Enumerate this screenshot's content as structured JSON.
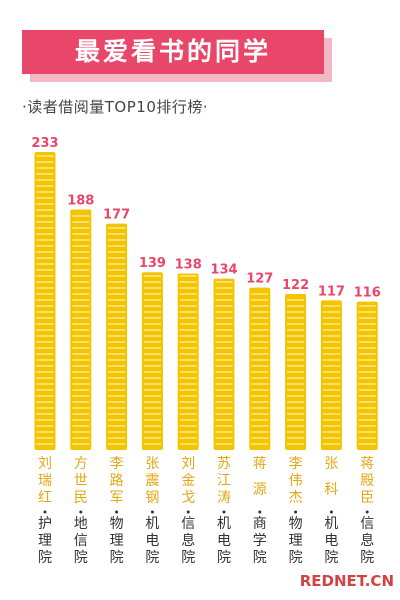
{
  "header": {
    "title": "最爱看书的同学",
    "subtitle": "·读者借阅量TOP10排行榜·"
  },
  "watermark": "REDNET.CN",
  "colors": {
    "banner": "#e9476a",
    "banner_shadow": "#f2b8c6",
    "book": "#f5c400",
    "book_stripe": "#fff2a8",
    "value_label": "#e9476a",
    "student_text": "#e3a818"
  },
  "chart_data": {
    "type": "bar",
    "title": "",
    "xlabel": "",
    "ylabel": "",
    "ylim": [
      0,
      233
    ],
    "categories": [
      {
        "name": "刘瑞红",
        "college": "护理院"
      },
      {
        "name": "方世民",
        "college": "地信院"
      },
      {
        "name": "李路军",
        "college": "物理院"
      },
      {
        "name": "张震钢",
        "college": "机电院"
      },
      {
        "name": "刘金戈",
        "college": "信息院"
      },
      {
        "name": "苏江涛",
        "college": "机电院"
      },
      {
        "name": "蒋源",
        "college": "商学院"
      },
      {
        "name": "李伟杰",
        "college": "物理院"
      },
      {
        "name": "张科",
        "college": "机电院"
      },
      {
        "name": "蒋殿臣",
        "college": "信息院"
      }
    ],
    "values": [
      233,
      188,
      177,
      139,
      138,
      134,
      127,
      122,
      117,
      116
    ]
  }
}
